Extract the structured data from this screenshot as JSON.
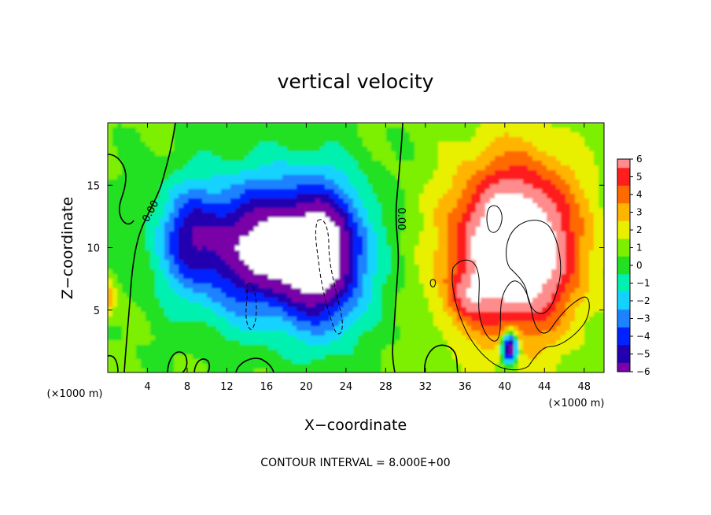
{
  "chart_data": {
    "type": "heatmap",
    "title": "vertical velocity",
    "xlabel": "X−coordinate",
    "ylabel": "Z−coordinate",
    "x_unit_label": "(×1000 m)",
    "y_unit_label": "(×1000 m)",
    "xlim": [
      0,
      50
    ],
    "ylim": [
      0,
      20
    ],
    "x_ticks": [
      4,
      8,
      12,
      16,
      20,
      24,
      28,
      32,
      36,
      40,
      44,
      48
    ],
    "y_ticks": [
      5,
      10,
      15
    ],
    "colorbar": {
      "labels": [
        "6",
        "5",
        "4",
        "3",
        "2",
        "1",
        "0",
        "−1",
        "−2",
        "−3",
        "−4",
        "−5",
        "−6"
      ],
      "levels": [
        6,
        5,
        4,
        3,
        2,
        1,
        0,
        -1,
        -2,
        -3,
        -4,
        -5,
        -6
      ]
    },
    "contour_labels": [
      "0.00",
      "0.00"
    ],
    "footer": "CONTOUR INTERVAL = 8.000E+00",
    "features": [
      {
        "kind": "downdraft",
        "x": 16,
        "z": 10,
        "sx": 8,
        "sz": 5.5,
        "amp": -8
      },
      {
        "kind": "downdraft",
        "x": 22,
        "z": 9,
        "sx": 4,
        "sz": 6,
        "amp": -5
      },
      {
        "kind": "downdraft",
        "x": 8,
        "z": 11,
        "sx": 3,
        "sz": 4,
        "amp": -3
      },
      {
        "kind": "updraft",
        "x": 41,
        "z": 10,
        "sx": 6.5,
        "sz": 7,
        "amp": 9
      },
      {
        "kind": "updraft",
        "x": 36,
        "z": 6,
        "sx": 2,
        "sz": 2,
        "amp": 2
      },
      {
        "kind": "downdraft",
        "x": 40.5,
        "z": 2,
        "sx": 0.8,
        "sz": 1.2,
        "amp": -10
      },
      {
        "kind": "downdraft",
        "x": 0,
        "z": 6,
        "sx": 0.8,
        "sz": 1.5,
        "amp": 3
      }
    ]
  }
}
